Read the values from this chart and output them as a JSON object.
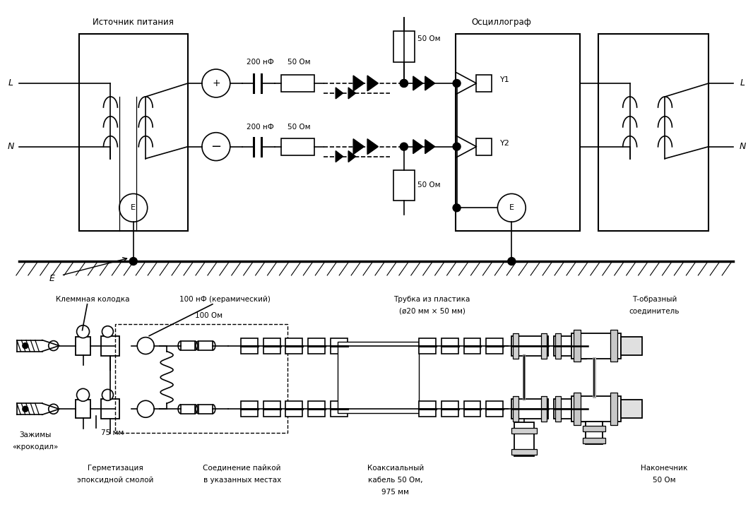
{
  "bg_color": "#ffffff",
  "line_color": "#000000",
  "fig_width": 10.66,
  "fig_height": 7.52,
  "top_labels": {
    "source": "Источник питания",
    "osc": "Осциллограф",
    "cap1": "200 нФ",
    "cap2": "200 нФ",
    "res1": "50 Ом",
    "res2": "50 Ом",
    "res3_top": "50 Ом",
    "res3_bot": "50 Ом",
    "Y1": "Y1",
    "Y2": "Y2",
    "L_left": "L",
    "N_left": "N",
    "L_right": "L",
    "N_right": "N",
    "E_label": "E"
  },
  "bottom_labels": {
    "terminal": "Клеммная колодка",
    "cap_label": "100 нФ (керамический)",
    "res_label": "100 Ом",
    "tube_label": "Трубка из пластика",
    "tube_size": "(ø20 мм × 50 мм)",
    "T_conn": "Т-образный",
    "T_conn2": "соединитель",
    "crocodile": "Зажимы",
    "crocodile2": "«крокодил»",
    "seal": "Герметизация",
    "seal2": "эпоксидной смолой",
    "solder": "Соединение пайкой",
    "solder2": "в указанных местах",
    "coax": "Коаксиальный",
    "coax2": "кабель 50 Ом,",
    "coax3": "975 мм",
    "term50": "Наконечник",
    "term50_2": "50 Ом",
    "dist75": "75 мм"
  }
}
